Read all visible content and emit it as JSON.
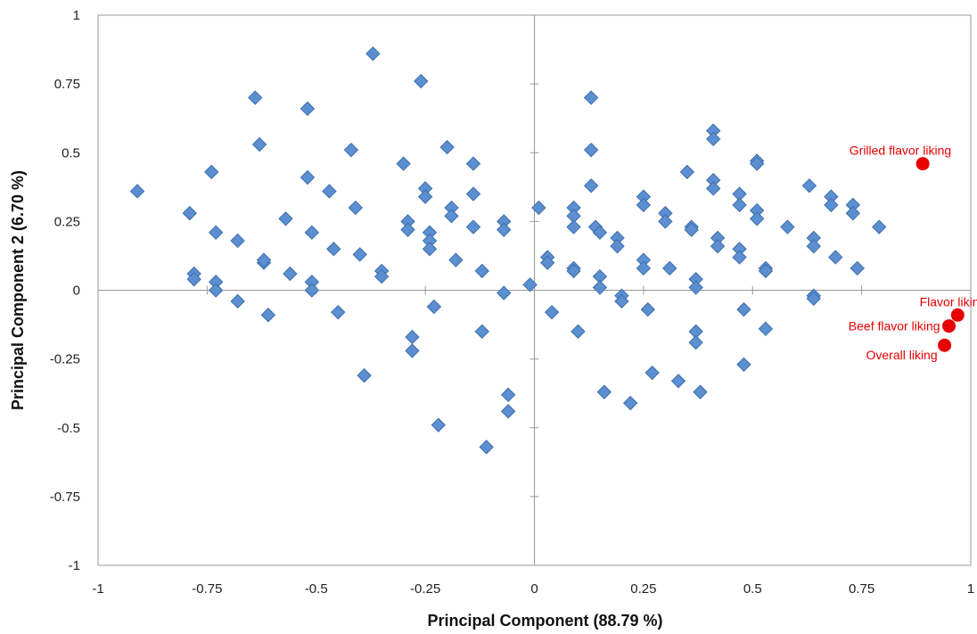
{
  "chart_data": {
    "type": "scatter",
    "title": "",
    "xlabel": "Principal Component (88.79 %)",
    "ylabel": "Principal Component 2 (6.70 %)",
    "xlim": [
      -1,
      1
    ],
    "ylim": [
      -1,
      1
    ],
    "x_ticks": [
      "-1",
      "-0.75",
      "-0.5",
      "-0.25",
      "0",
      "0.25",
      "0.5",
      "0.75",
      "1"
    ],
    "y_ticks": [
      "-1",
      "-0.75",
      "-0.5",
      "-0.25",
      "0",
      "0.25",
      "0.5",
      "0.75",
      "1"
    ],
    "grid": false,
    "colors": {
      "points": "#5b8fd1",
      "points_edge": "#3f6fab",
      "highlight": "#e60000",
      "axis": "#999999"
    },
    "series": [
      {
        "marker": "diamond",
        "points": [
          [
            -0.91,
            0.36
          ],
          [
            -0.79,
            0.28
          ],
          [
            -0.78,
            0.06
          ],
          [
            -0.78,
            0.04
          ],
          [
            -0.74,
            0.43
          ],
          [
            -0.73,
            0.21
          ],
          [
            -0.73,
            0.03
          ],
          [
            -0.73,
            0.0
          ],
          [
            -0.68,
            0.18
          ],
          [
            -0.68,
            -0.04
          ],
          [
            -0.64,
            0.7
          ],
          [
            -0.63,
            0.53
          ],
          [
            -0.62,
            0.1
          ],
          [
            -0.62,
            0.11
          ],
          [
            -0.61,
            -0.09
          ],
          [
            -0.57,
            0.26
          ],
          [
            -0.56,
            0.06
          ],
          [
            -0.52,
            0.66
          ],
          [
            -0.52,
            0.41
          ],
          [
            -0.51,
            0.21
          ],
          [
            -0.51,
            0.03
          ],
          [
            -0.51,
            0.0
          ],
          [
            -0.47,
            0.36
          ],
          [
            -0.46,
            0.15
          ],
          [
            -0.45,
            -0.08
          ],
          [
            -0.42,
            0.51
          ],
          [
            -0.41,
            0.3
          ],
          [
            -0.4,
            0.13
          ],
          [
            -0.39,
            -0.31
          ],
          [
            -0.37,
            0.86
          ],
          [
            -0.35,
            0.07
          ],
          [
            -0.35,
            0.05
          ],
          [
            -0.3,
            0.46
          ],
          [
            -0.29,
            0.25
          ],
          [
            -0.29,
            0.22
          ],
          [
            -0.28,
            -0.17
          ],
          [
            -0.28,
            -0.22
          ],
          [
            -0.26,
            0.76
          ],
          [
            -0.25,
            0.37
          ],
          [
            -0.25,
            0.34
          ],
          [
            -0.24,
            0.21
          ],
          [
            -0.24,
            0.18
          ],
          [
            -0.24,
            0.15
          ],
          [
            -0.23,
            -0.06
          ],
          [
            -0.22,
            -0.49
          ],
          [
            -0.2,
            0.52
          ],
          [
            -0.19,
            0.3
          ],
          [
            -0.19,
            0.27
          ],
          [
            -0.18,
            0.11
          ],
          [
            -0.14,
            0.46
          ],
          [
            -0.14,
            0.35
          ],
          [
            -0.14,
            0.23
          ],
          [
            -0.12,
            0.07
          ],
          [
            -0.12,
            -0.15
          ],
          [
            -0.11,
            -0.57
          ],
          [
            -0.07,
            0.25
          ],
          [
            -0.07,
            0.22
          ],
          [
            -0.07,
            -0.01
          ],
          [
            -0.06,
            -0.38
          ],
          [
            -0.06,
            -0.44
          ],
          [
            -0.01,
            0.02
          ],
          [
            0.01,
            0.3
          ],
          [
            0.03,
            0.12
          ],
          [
            0.03,
            0.1
          ],
          [
            0.04,
            -0.08
          ],
          [
            0.09,
            0.3
          ],
          [
            0.09,
            0.27
          ],
          [
            0.09,
            0.23
          ],
          [
            0.09,
            0.08
          ],
          [
            0.09,
            0.07
          ],
          [
            0.1,
            -0.15
          ],
          [
            0.13,
            0.7
          ],
          [
            0.13,
            0.51
          ],
          [
            0.13,
            0.38
          ],
          [
            0.14,
            0.23
          ],
          [
            0.15,
            0.21
          ],
          [
            0.15,
            0.05
          ],
          [
            0.15,
            0.01
          ],
          [
            0.16,
            -0.37
          ],
          [
            0.19,
            0.19
          ],
          [
            0.19,
            0.16
          ],
          [
            0.2,
            -0.02
          ],
          [
            0.2,
            -0.04
          ],
          [
            0.22,
            -0.41
          ],
          [
            0.25,
            0.34
          ],
          [
            0.25,
            0.31
          ],
          [
            0.25,
            0.11
          ],
          [
            0.25,
            0.08
          ],
          [
            0.26,
            -0.07
          ],
          [
            0.27,
            -0.3
          ],
          [
            0.3,
            0.28
          ],
          [
            0.3,
            0.25
          ],
          [
            0.31,
            0.08
          ],
          [
            0.33,
            -0.33
          ],
          [
            0.35,
            0.43
          ],
          [
            0.36,
            0.23
          ],
          [
            0.36,
            0.22
          ],
          [
            0.37,
            0.04
          ],
          [
            0.37,
            0.01
          ],
          [
            0.37,
            -0.15
          ],
          [
            0.37,
            -0.19
          ],
          [
            0.38,
            -0.37
          ],
          [
            0.41,
            0.58
          ],
          [
            0.41,
            0.55
          ],
          [
            0.41,
            0.4
          ],
          [
            0.41,
            0.37
          ],
          [
            0.42,
            0.19
          ],
          [
            0.42,
            0.16
          ],
          [
            0.47,
            0.35
          ],
          [
            0.47,
            0.31
          ],
          [
            0.47,
            0.15
          ],
          [
            0.47,
            0.12
          ],
          [
            0.48,
            -0.07
          ],
          [
            0.48,
            -0.27
          ],
          [
            0.51,
            0.47
          ],
          [
            0.51,
            0.46
          ],
          [
            0.51,
            0.29
          ],
          [
            0.51,
            0.26
          ],
          [
            0.53,
            0.08
          ],
          [
            0.53,
            0.07
          ],
          [
            0.53,
            -0.14
          ],
          [
            0.58,
            0.23
          ],
          [
            0.63,
            0.38
          ],
          [
            0.64,
            0.19
          ],
          [
            0.64,
            0.16
          ],
          [
            0.64,
            -0.02
          ],
          [
            0.64,
            -0.03
          ],
          [
            0.68,
            0.34
          ],
          [
            0.68,
            0.31
          ],
          [
            0.69,
            0.12
          ],
          [
            0.73,
            0.31
          ],
          [
            0.73,
            0.28
          ],
          [
            0.74,
            0.08
          ],
          [
            0.79,
            0.23
          ]
        ]
      },
      {
        "marker": "circle",
        "points": [
          [
            0.89,
            0.46
          ],
          [
            0.97,
            -0.09
          ],
          [
            0.95,
            -0.13
          ],
          [
            0.94,
            -0.2
          ]
        ]
      }
    ],
    "annotations": [
      {
        "text": "Grilled flavor liking",
        "x": 0.89,
        "y": 0.46,
        "anchor": "end",
        "pos": "above"
      },
      {
        "text": "Flavor liking",
        "x": 0.97,
        "y": -0.09,
        "anchor": "end",
        "pos": "above"
      },
      {
        "text": "Beef flavor liking",
        "x": 0.95,
        "y": -0.13,
        "anchor": "end",
        "pos": "left"
      },
      {
        "text": "Overall liking",
        "x": 0.94,
        "y": -0.2,
        "anchor": "end",
        "pos": "below"
      }
    ]
  }
}
